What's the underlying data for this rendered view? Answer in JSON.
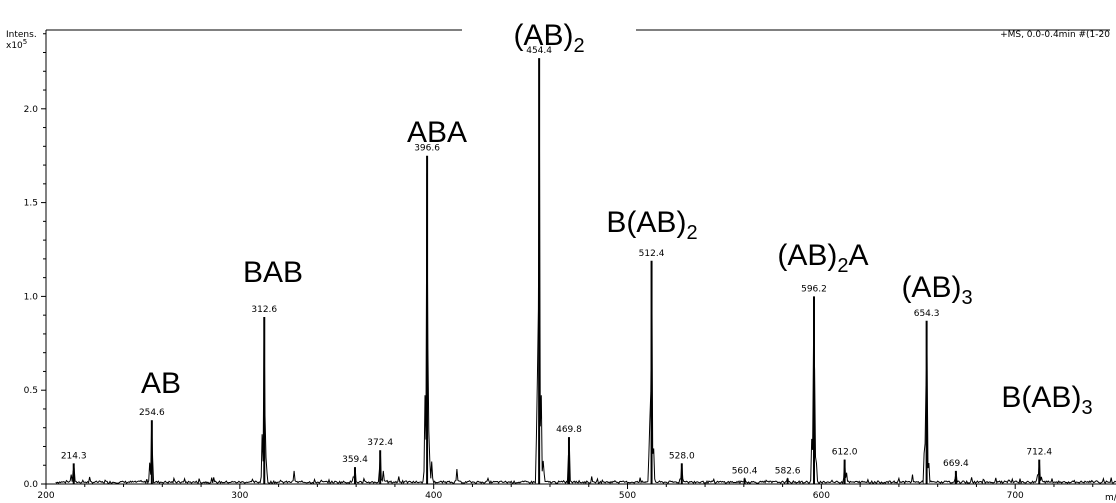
{
  "chart_data": {
    "type": "line",
    "ylabel": "Intens.",
    "y_unit": "x10",
    "y_unit_exp": "5",
    "xlabel": "m/z",
    "info": "+MS, 0.0-0.4min #(1-20",
    "xlim": [
      200,
      752
    ],
    "ylim": [
      0,
      2.42
    ],
    "x_ticks": [
      200,
      300,
      400,
      500,
      600,
      700
    ],
    "y_ticks": [
      0.0,
      0.5,
      1.0,
      1.5,
      2.0
    ],
    "y_tick_labels": [
      "0.0",
      "0.5",
      "1.0",
      "1.5",
      "2.0"
    ],
    "peaks": [
      {
        "mz": 214.3,
        "intensity": 0.11,
        "label": "214.3"
      },
      {
        "mz": 254.6,
        "intensity": 0.34,
        "label": "254.6"
      },
      {
        "mz": 312.6,
        "intensity": 0.89,
        "label": "312.6"
      },
      {
        "mz": 359.4,
        "intensity": 0.09,
        "label": "359.4"
      },
      {
        "mz": 372.4,
        "intensity": 0.18,
        "label": "372.4"
      },
      {
        "mz": 396.6,
        "intensity": 1.75,
        "label": "396.6"
      },
      {
        "mz": 454.4,
        "intensity": 2.27,
        "label": "454.4"
      },
      {
        "mz": 469.8,
        "intensity": 0.25,
        "label": "469.8"
      },
      {
        "mz": 512.4,
        "intensity": 1.19,
        "label": "512.4"
      },
      {
        "mz": 528.0,
        "intensity": 0.11,
        "label": "528.0"
      },
      {
        "mz": 560.4,
        "intensity": 0.03,
        "label": "560.4"
      },
      {
        "mz": 582.6,
        "intensity": 0.03,
        "label": "582.6"
      },
      {
        "mz": 596.2,
        "intensity": 1.0,
        "label": "596.2"
      },
      {
        "mz": 612.0,
        "intensity": 0.13,
        "label": "612.0"
      },
      {
        "mz": 654.3,
        "intensity": 0.87,
        "label": "654.3"
      },
      {
        "mz": 669.4,
        "intensity": 0.07,
        "label": "669.4"
      },
      {
        "mz": 712.4,
        "intensity": 0.13,
        "label": "712.4"
      }
    ],
    "minor_peaks": [
      {
        "mz": 213.0,
        "intensity": 0.05
      },
      {
        "mz": 230.5,
        "intensity": 0.02
      },
      {
        "mz": 253.6,
        "intensity": 0.12
      },
      {
        "mz": 266.0,
        "intensity": 0.03
      },
      {
        "mz": 311.6,
        "intensity": 0.28
      },
      {
        "mz": 313.6,
        "intensity": 0.15
      },
      {
        "mz": 328.0,
        "intensity": 0.07
      },
      {
        "mz": 342.0,
        "intensity": 0.02
      },
      {
        "mz": 358.4,
        "intensity": 0.04
      },
      {
        "mz": 374.0,
        "intensity": 0.07
      },
      {
        "mz": 382.0,
        "intensity": 0.04
      },
      {
        "mz": 395.6,
        "intensity": 0.5
      },
      {
        "mz": 397.6,
        "intensity": 0.3
      },
      {
        "mz": 399.0,
        "intensity": 0.12
      },
      {
        "mz": 412.0,
        "intensity": 0.08
      },
      {
        "mz": 428.0,
        "intensity": 0.03
      },
      {
        "mz": 453.4,
        "intensity": 0.6
      },
      {
        "mz": 455.4,
        "intensity": 0.5
      },
      {
        "mz": 456.6,
        "intensity": 0.13
      },
      {
        "mz": 487.0,
        "intensity": 0.02
      },
      {
        "mz": 511.4,
        "intensity": 0.35
      },
      {
        "mz": 513.4,
        "intensity": 0.2
      },
      {
        "mz": 595.2,
        "intensity": 0.3
      },
      {
        "mz": 597.2,
        "intensity": 0.18
      },
      {
        "mz": 613.0,
        "intensity": 0.06
      },
      {
        "mz": 640.0,
        "intensity": 0.03
      },
      {
        "mz": 647.0,
        "intensity": 0.05
      },
      {
        "mz": 653.3,
        "intensity": 0.27
      },
      {
        "mz": 655.3,
        "intensity": 0.14
      },
      {
        "mz": 684.0,
        "intensity": 0.02
      },
      {
        "mz": 697.0,
        "intensity": 0.02
      },
      {
        "mz": 711.4,
        "intensity": 0.05
      },
      {
        "mz": 713.6,
        "intensity": 0.04
      }
    ],
    "annotations": [
      {
        "base": "AB",
        "subscript": "",
        "tail": "",
        "tail_subscript": "",
        "mz": 254.6
      },
      {
        "base": "BAB",
        "subscript": "",
        "tail": "",
        "tail_subscript": "",
        "mz": 312.6
      },
      {
        "base": "ABA",
        "subscript": "",
        "tail": "",
        "tail_subscript": "",
        "mz": 396.6
      },
      {
        "base": "(AB)",
        "subscript": "2",
        "tail": "",
        "tail_subscript": "",
        "mz": 454.4
      },
      {
        "base": "B(AB)",
        "subscript": "2",
        "tail": "",
        "tail_subscript": "",
        "mz": 512.4
      },
      {
        "base": "(AB)",
        "subscript": "2",
        "tail": "A",
        "tail_subscript": "",
        "mz": 596.2
      },
      {
        "base": "(AB)",
        "subscript": "3",
        "tail": "",
        "tail_subscript": "",
        "mz": 654.3
      },
      {
        "base": "B(AB)",
        "subscript": "3",
        "tail": "",
        "tail_subscript": "",
        "mz": 712.4
      }
    ],
    "line_color": "#000000",
    "background": "#ffffff"
  }
}
